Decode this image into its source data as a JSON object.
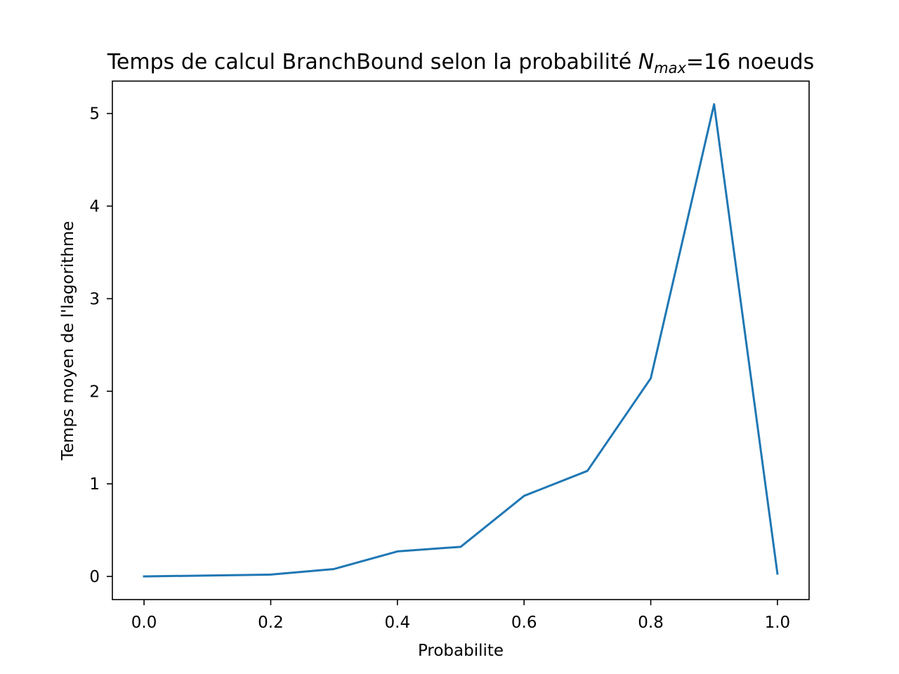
{
  "chart_data": {
    "type": "line",
    "title": {
      "prefix": "Temps de calcul BranchBound selon la probabilité ",
      "symbol": "N",
      "subscript": "max",
      "suffix": "=16 noeuds"
    },
    "xlabel": "Probabilite",
    "ylabel": "Temps moyen de l'lagorithme",
    "xlim": [
      -0.05,
      1.05
    ],
    "ylim": [
      -0.25,
      5.35
    ],
    "xticks": [
      "0.0",
      "0.2",
      "0.4",
      "0.6",
      "0.8",
      "1.0"
    ],
    "yticks": [
      "0",
      "1",
      "2",
      "3",
      "4",
      "5"
    ],
    "grid": false,
    "legend": "none",
    "line_color": "#1f77b4",
    "series": [
      {
        "x": [
          0.0,
          0.2,
          0.3,
          0.4,
          0.5,
          0.6,
          0.7,
          0.8,
          0.9,
          1.0
        ],
        "y": [
          0.0,
          0.02,
          0.08,
          0.27,
          0.32,
          0.87,
          1.14,
          2.14,
          5.1,
          0.03
        ]
      }
    ]
  }
}
